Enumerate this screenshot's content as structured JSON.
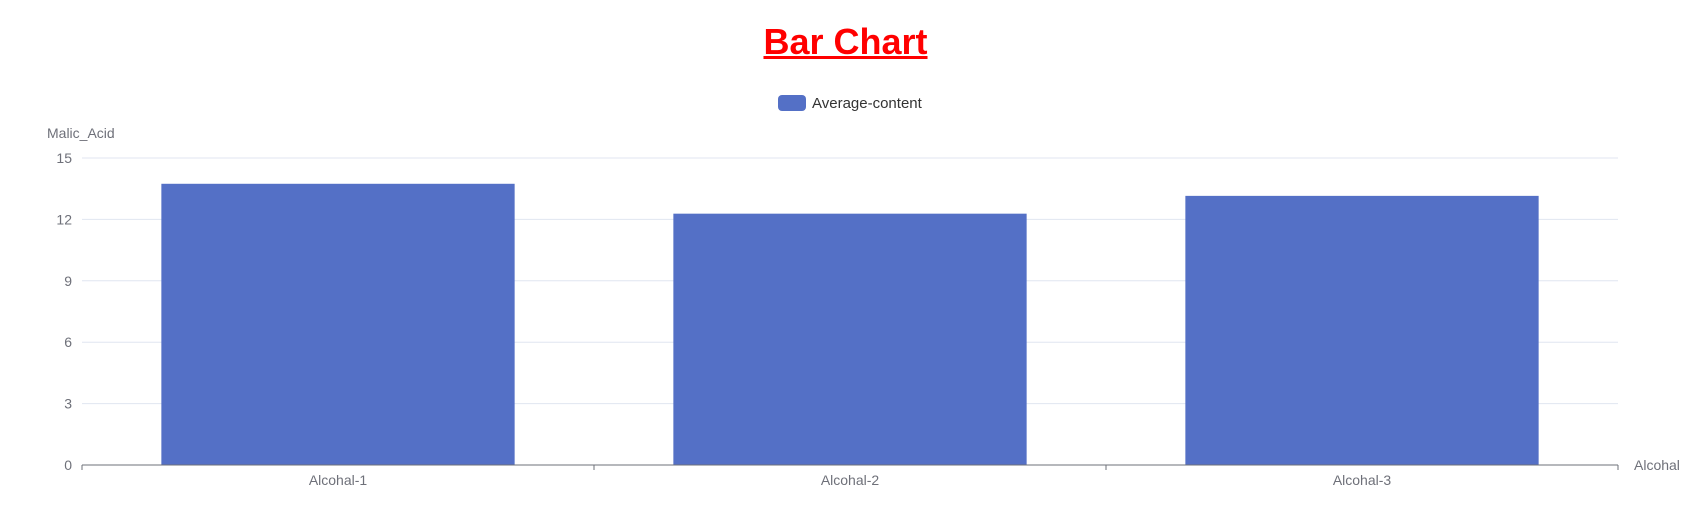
{
  "chart_data": {
    "type": "bar",
    "title": "Bar Chart",
    "xlabel": "Alcohal",
    "ylabel": "Malic_Acid",
    "categories": [
      "Alcohal-1",
      "Alcohal-2",
      "Alcohal-3"
    ],
    "series": [
      {
        "name": "Average-content",
        "values": [
          13.74,
          12.28,
          13.15
        ]
      }
    ],
    "ylim": [
      0,
      15
    ],
    "yticks": [
      0,
      3,
      6,
      9,
      12,
      15
    ],
    "grid": true,
    "legend_position": "top-center"
  },
  "colors": {
    "title": "#ff0000",
    "bar": "#5470c6",
    "axis_text": "#6e7079",
    "legend_text": "#333333",
    "grid": "#e0e6f1",
    "axis_line": "#6e7079"
  }
}
